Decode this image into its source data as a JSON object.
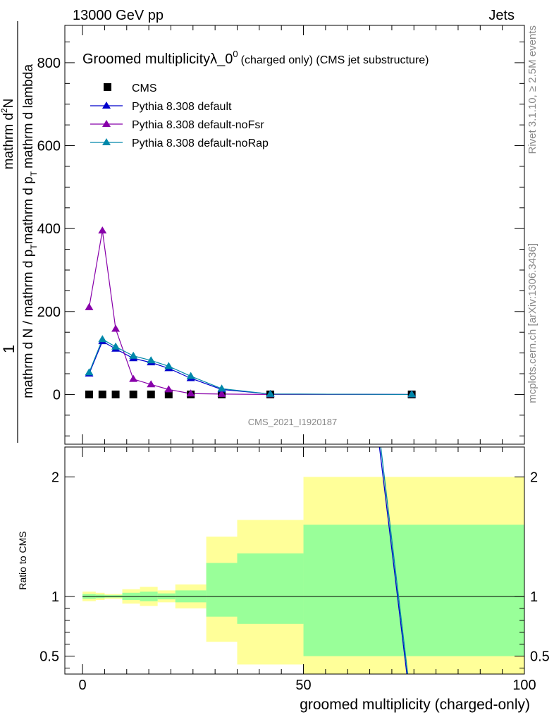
{
  "header": {
    "left": "13000 GeV pp",
    "right": "Jets"
  },
  "side_labels": {
    "rivet": "Rivet 3.1.10, ≥ 2.5M events",
    "mcplots": "mcplots.cern.ch [arXiv:1306.3436]"
  },
  "chart_data": [
    {
      "type": "line",
      "title": "Groomed multiplicityλ_0⁰ (charged only) (CMS jet substructure)",
      "title_main": "Groomed multiplicity",
      "title_lambda": "λ_0",
      "title_sup": "0",
      "title_paren": "(charged only) (CMS jet substructure)",
      "watermark": "CMS_2021_I1920187",
      "ylabel_numerator": "mathrm d²N",
      "ylabel_numerator_main": "mathrm d",
      "ylabel_numerator_sup": "2",
      "ylabel_numerator_end": "N",
      "ylabel_fraction": "1",
      "ylabel_denominator": "mathrm d N / mathrm d p_T mathrm d p_T mathrm d lambda",
      "ylabel_denominator_parts": [
        "mathrm d N / mathrm d p",
        "T",
        "mathrm d p",
        "T",
        "mathrm d lambda"
      ],
      "ylim": [
        -120,
        890
      ],
      "yticks": [
        0,
        200,
        400,
        600,
        800
      ],
      "xlim": [
        -4,
        100
      ],
      "legend_position": "top-left",
      "series": [
        {
          "name": "CMS",
          "marker": "square",
          "color": "#000000",
          "x": [
            1.5,
            4.5,
            7.5,
            11.5,
            15.5,
            19.5,
            24.5,
            31.5,
            42.5,
            74.5
          ],
          "y": [
            0,
            0,
            0,
            0,
            0,
            0,
            0,
            0,
            0,
            0
          ]
        },
        {
          "name": "Pythia 8.308 default",
          "marker": "triangle",
          "color": "#0000cc",
          "x": [
            1.5,
            4.5,
            7.5,
            11.5,
            15.5,
            19.5,
            24.5,
            31.5,
            42.5,
            74.5
          ],
          "y": [
            50,
            128,
            110,
            87,
            77,
            63,
            39,
            12,
            1,
            0
          ]
        },
        {
          "name": "Pythia 8.308 default-noFsr",
          "marker": "triangle",
          "color": "#8800aa",
          "x": [
            1.5,
            4.5,
            7.5,
            11.5,
            15.5,
            19.5,
            24.5,
            31.5,
            42.5,
            74.5
          ],
          "y": [
            210,
            395,
            158,
            37,
            24,
            12,
            2,
            1,
            0,
            0
          ]
        },
        {
          "name": "Pythia 8.308 default-noRap",
          "marker": "triangle",
          "color": "#0088aa",
          "x": [
            1.5,
            4.5,
            7.5,
            11.5,
            15.5,
            19.5,
            24.5,
            31.5,
            42.5,
            74.5
          ],
          "y": [
            53,
            133,
            115,
            93,
            82,
            68,
            44,
            14,
            1,
            0
          ]
        }
      ]
    },
    {
      "type": "area",
      "ylabel": "Ratio to CMS",
      "xlabel": "groomed multiplicity (charged-only)",
      "xlim": [
        -4,
        100
      ],
      "xticks": [
        0,
        50,
        100
      ],
      "ylim": [
        0.35,
        2.25
      ],
      "yticks": [
        0.5,
        1,
        2
      ],
      "reference_line": 1,
      "bands": {
        "bins": [
          [
            0,
            3
          ],
          [
            3,
            5
          ],
          [
            5,
            9
          ],
          [
            9,
            13
          ],
          [
            13,
            17
          ],
          [
            17,
            21
          ],
          [
            21,
            28
          ],
          [
            28,
            35
          ],
          [
            35,
            50
          ],
          [
            50,
            100
          ]
        ],
        "yellow_low": [
          0.96,
          0.97,
          0.98,
          0.94,
          0.92,
          0.95,
          0.9,
          0.62,
          0.43,
          0.35
        ],
        "yellow_high": [
          1.04,
          1.03,
          1.02,
          1.06,
          1.08,
          1.05,
          1.1,
          1.5,
          1.64,
          2.0
        ],
        "green_low": [
          0.98,
          0.985,
          0.99,
          0.97,
          0.96,
          0.975,
          0.95,
          0.83,
          0.77,
          0.5
        ],
        "green_high": [
          1.02,
          1.015,
          1.01,
          1.03,
          1.04,
          1.025,
          1.05,
          1.28,
          1.36,
          1.6
        ]
      },
      "colors": {
        "yellow": "#ffff99",
        "green": "#99ff99"
      },
      "model_lines": [
        {
          "name": "Pythia 8.308 default",
          "color": "#0000cc",
          "x": [
            67.2,
            73.4
          ],
          "y": [
            2.25,
            0.35
          ]
        },
        {
          "name": "Pythia 8.308 default-noRap",
          "color": "#0088aa",
          "x": [
            67.5,
            73.6
          ],
          "y": [
            2.25,
            0.35
          ]
        }
      ]
    }
  ]
}
